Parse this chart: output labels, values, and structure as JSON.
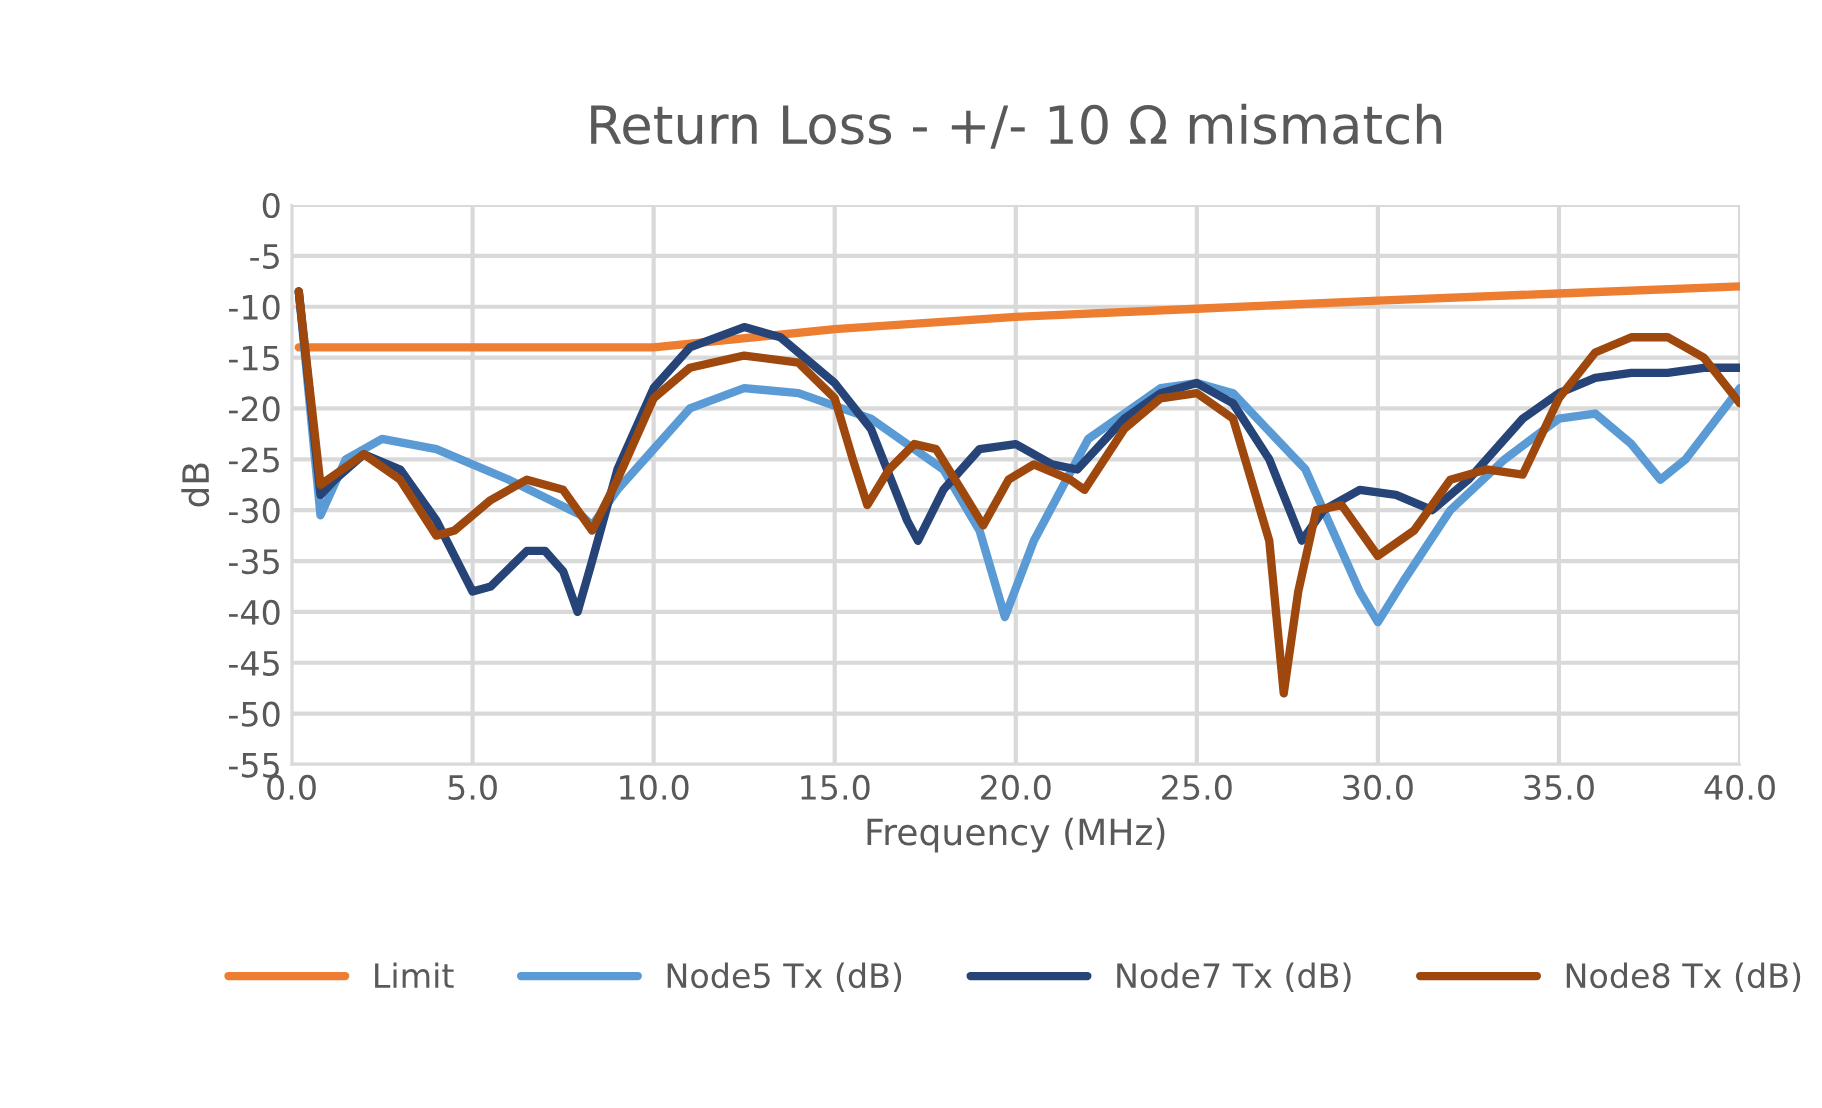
{
  "chart_data": {
    "type": "line",
    "title": "Return Loss - +/- 10 Ω mismatch",
    "xlabel": "Frequency (MHz)",
    "ylabel": "dB",
    "xlim": [
      0,
      40
    ],
    "xticks": [
      {
        "value": 0,
        "label": "0.0"
      },
      {
        "value": 5,
        "label": "5.0"
      },
      {
        "value": 10,
        "label": "10.0"
      },
      {
        "value": 15,
        "label": "15.0"
      },
      {
        "value": 20,
        "label": "20.0"
      },
      {
        "value": 25,
        "label": "25.0"
      },
      {
        "value": 30,
        "label": "30.0"
      },
      {
        "value": 35,
        "label": "35.0"
      },
      {
        "value": 40,
        "label": "40.0"
      }
    ],
    "ylim": [
      -55,
      0
    ],
    "yticks": [
      0,
      -5,
      -10,
      -15,
      -20,
      -25,
      -30,
      -35,
      -40,
      -45,
      -50,
      -55
    ],
    "grid": true,
    "legend": "bottom",
    "series": [
      {
        "name": "Limit",
        "color": "#ed7d31",
        "x": [
          0.2,
          10,
          15,
          20,
          25,
          30,
          35,
          40
        ],
        "values": [
          -14,
          -14,
          -12.2,
          -11,
          -10.2,
          -9.4,
          -8.7,
          -8
        ]
      },
      {
        "name": "Node5 Tx (dB)",
        "color": "#5b9bd5",
        "x": [
          0.2,
          0.8,
          1.5,
          2.5,
          4,
          6,
          8,
          8.3,
          9,
          10,
          11,
          12.5,
          14,
          16,
          18,
          19,
          19.7,
          20.5,
          22,
          24,
          25,
          26,
          28,
          29.5,
          30,
          30.7,
          32,
          33.5,
          35,
          36,
          37,
          37.8,
          38.5,
          40
        ],
        "values": [
          -8.5,
          -30.5,
          -25,
          -23,
          -24,
          -27,
          -30.5,
          -31.5,
          -28,
          -24,
          -20,
          -18,
          -18.5,
          -21,
          -26,
          -32,
          -40.5,
          -33,
          -23,
          -18,
          -17.5,
          -18.5,
          -26,
          -38,
          -41,
          -37,
          -30,
          -25,
          -21,
          -20.5,
          -23.5,
          -27,
          -25,
          -18
        ]
      },
      {
        "name": "Node7 Tx (dB)",
        "color": "#264478",
        "x": [
          0.2,
          0.8,
          1.2,
          2,
          3,
          4,
          5,
          5.5,
          6.5,
          7,
          7.5,
          7.9,
          8.3,
          9,
          10,
          11,
          12.5,
          13.5,
          15,
          16,
          17,
          17.3,
          18,
          19,
          20,
          21,
          21.7,
          23,
          24,
          25,
          26,
          27,
          27.9,
          28.5,
          29.5,
          30.5,
          31.5,
          32.5,
          34,
          35,
          36,
          37,
          38,
          39,
          40
        ],
        "values": [
          -8.5,
          -28.5,
          -27,
          -24.5,
          -26,
          -31,
          -38,
          -37.5,
          -34,
          -34,
          -36,
          -40,
          -35,
          -26,
          -18,
          -14,
          -12,
          -13,
          -17.5,
          -22,
          -31,
          -33,
          -28,
          -24,
          -23.5,
          -25.5,
          -26,
          -21,
          -18.5,
          -17.5,
          -19.5,
          -25,
          -33,
          -30,
          -28,
          -28.5,
          -30,
          -27,
          -21,
          -18.5,
          -17,
          -16.5,
          -16.5,
          -16,
          -16
        ]
      },
      {
        "name": "Node8 Tx (dB)",
        "color": "#9e480e",
        "x": [
          0.2,
          0.8,
          1.2,
          2,
          3,
          4,
          4.5,
          5.5,
          6.5,
          7.5,
          8.3,
          9,
          10,
          11,
          12.5,
          14,
          15,
          15.5,
          15.9,
          16.5,
          17.2,
          17.8,
          18.5,
          19.1,
          19.8,
          20.5,
          21.5,
          21.9,
          23,
          24,
          25,
          26,
          27,
          27.4,
          27.8,
          28.3,
          29,
          30,
          31,
          32,
          33,
          34,
          35,
          36,
          37,
          38,
          39,
          40
        ],
        "values": [
          -8.5,
          -27.5,
          -26.5,
          -24.5,
          -27,
          -32.5,
          -32,
          -29,
          -27,
          -28,
          -32,
          -27,
          -19,
          -16,
          -14.8,
          -15.5,
          -19,
          -25,
          -29.5,
          -26,
          -23.5,
          -24,
          -28,
          -31.5,
          -27,
          -25.5,
          -27,
          -28,
          -22,
          -19,
          -18.5,
          -21,
          -33,
          -48,
          -38,
          -30,
          -29.5,
          -34.5,
          -32,
          -27,
          -26,
          -26.5,
          -19,
          -14.5,
          -13,
          -13,
          -15,
          -19.5
        ]
      }
    ]
  }
}
